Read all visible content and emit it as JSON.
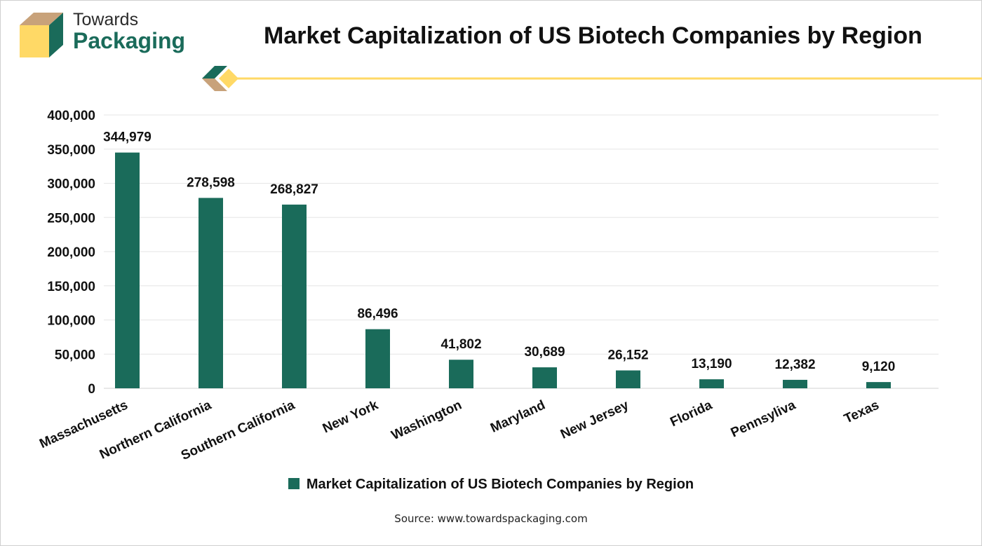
{
  "brand": {
    "line1": "Towards",
    "line2": "Packaging"
  },
  "title": "Market Capitalization of US Biotech Companies by Region",
  "colors": {
    "bar": "#1a6b5a",
    "accent_yellow": "#ffd966",
    "accent_tan": "#c8a27a",
    "grid": "#e6e6e6"
  },
  "chart_data": {
    "type": "bar",
    "categories": [
      "Massachusetts",
      "Northern California",
      "Southern California",
      "New York",
      "Washington",
      "Maryland",
      "New Jersey",
      "Florida",
      "Pennsyliva",
      "Texas"
    ],
    "values": [
      344979,
      278598,
      268827,
      86496,
      41802,
      30689,
      26152,
      13190,
      12382,
      9120
    ],
    "value_labels": [
      "344,979",
      "278,598",
      "268,827",
      "86,496",
      "41,802",
      "30,689",
      "26,152",
      "13,190",
      "12,382",
      "9,120"
    ],
    "yticks": [
      "0",
      "50,000",
      "100,000",
      "150,000",
      "200,000",
      "250,000",
      "300,000",
      "350,000",
      "400,000"
    ],
    "ylim": [
      0,
      400000
    ],
    "grid": true,
    "legend_position": "bottom",
    "series": [
      {
        "name": "Market Capitalization of US Biotech Companies by Region",
        "values": [
          344979,
          278598,
          268827,
          86496,
          41802,
          30689,
          26152,
          13190,
          12382,
          9120
        ]
      }
    ]
  },
  "legend": {
    "label": "Market Capitalization of US Biotech Companies by Region"
  },
  "source": "Source: www.towardspackaging.com"
}
